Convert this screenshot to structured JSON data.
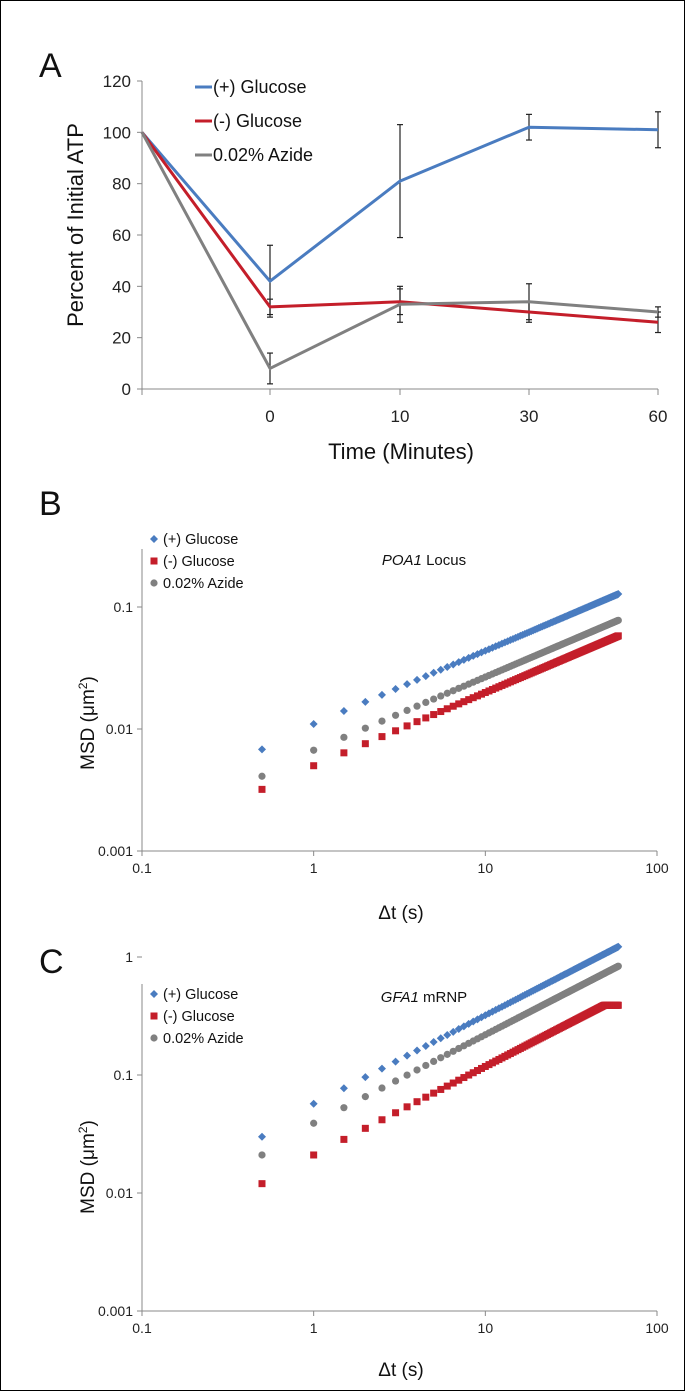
{
  "colors": {
    "glucose_plus": "#4a7cc0",
    "glucose_minus": "#c41e2a",
    "azide": "#808080",
    "axis": "#888888"
  },
  "chart_data": [
    {
      "panel": "A",
      "type": "line",
      "xlabel": "Time (Minutes)",
      "ylabel": "Percent of Initial ATP",
      "categories": [
        "",
        "0",
        "10",
        "30",
        "60"
      ],
      "ylim": [
        0,
        120
      ],
      "yticks": [
        0,
        20,
        40,
        60,
        80,
        100,
        120
      ],
      "grid": false,
      "legend_position": "top-left",
      "series": [
        {
          "name": "(+) Glucose",
          "color": "#4a7cc0",
          "values": [
            100,
            42,
            81,
            102,
            101
          ],
          "errors": [
            null,
            14,
            22,
            5,
            7
          ]
        },
        {
          "name": "(-) Glucose",
          "color": "#c41e2a",
          "values": [
            100,
            32,
            34,
            30,
            26
          ],
          "errors": [
            null,
            3,
            5,
            4,
            4
          ]
        },
        {
          "name": "0.02% Azide",
          "color": "#808080",
          "values": [
            100,
            8,
            33,
            34,
            30
          ],
          "errors": [
            null,
            6,
            7,
            7,
            2
          ]
        }
      ]
    },
    {
      "panel": "B",
      "type": "scatter",
      "subtitle_italic": "POA1",
      "subtitle_rest": " Locus",
      "xlabel": "Δt (s)",
      "ylabel_main": "MSD (μm",
      "ylabel_sup": "2",
      "ylabel_end": ")",
      "x_scale": "log",
      "y_scale": "log",
      "xlim": [
        0.1,
        100
      ],
      "ylim": [
        0.001,
        0.25
      ],
      "xticks": [
        0.1,
        1,
        10,
        100
      ],
      "xtick_labels": [
        "0.1",
        "1",
        "10",
        "100"
      ],
      "yticks": [
        0.001,
        0.01,
        0.1
      ],
      "ytick_labels": [
        "0.001",
        "0.01",
        "0.1"
      ],
      "legend_position": "top-left",
      "series": [
        {
          "name": "(+) Glucose",
          "marker": "diamond",
          "color": "#4a7cc0",
          "msd_at_0_5s": 0.0068,
          "msd_at_1s": 0.011,
          "exponent": 0.6,
          "msd_at_60s": 0.2
        },
        {
          "name": "(-) Glucose",
          "marker": "square",
          "color": "#c41e2a",
          "msd_at_0_5s": 0.0032,
          "msd_at_1s": 0.005,
          "exponent": 0.6,
          "msd_at_60s": 0.08
        },
        {
          "name": "0.02% Azide",
          "marker": "circle",
          "color": "#808080",
          "msd_at_0_5s": 0.0041,
          "msd_at_1s": 0.0067,
          "exponent": 0.6,
          "msd_at_60s": 0.14
        }
      ]
    },
    {
      "panel": "C",
      "type": "scatter",
      "subtitle_italic": "GFA1",
      "subtitle_rest": " mRNP",
      "xlabel": "Δt (s)",
      "ylabel_main": "MSD (μm",
      "ylabel_sup": "2",
      "ylabel_end": ")",
      "x_scale": "log",
      "y_scale": "log",
      "xlim": [
        0.1,
        100
      ],
      "ylim": [
        0.001,
        2.5
      ],
      "xticks": [
        0.1,
        1,
        10,
        100
      ],
      "xtick_labels": [
        "0.1",
        "1",
        "10",
        "100"
      ],
      "yticks": [
        0.001,
        0.01,
        0.1,
        1
      ],
      "ytick_labels": [
        "0.001",
        "0.01",
        "0.1",
        "1"
      ],
      "legend_position": "top-left",
      "series": [
        {
          "name": "(+) Glucose",
          "marker": "diamond",
          "color": "#4a7cc0",
          "msd_at_0_5s": 0.03,
          "msd_at_1s": 0.057,
          "exponent": 0.75,
          "msd_at_60s": 1.3
        },
        {
          "name": "(-) Glucose",
          "marker": "square",
          "color": "#c41e2a",
          "msd_at_0_5s": 0.012,
          "msd_at_1s": 0.021,
          "exponent": 0.75,
          "msd_at_60s": 0.39
        },
        {
          "name": "0.02% Azide",
          "marker": "circle",
          "color": "#808080",
          "msd_at_0_5s": 0.021,
          "msd_at_1s": 0.039,
          "exponent": 0.75,
          "msd_at_60s": 0.88
        }
      ]
    }
  ]
}
